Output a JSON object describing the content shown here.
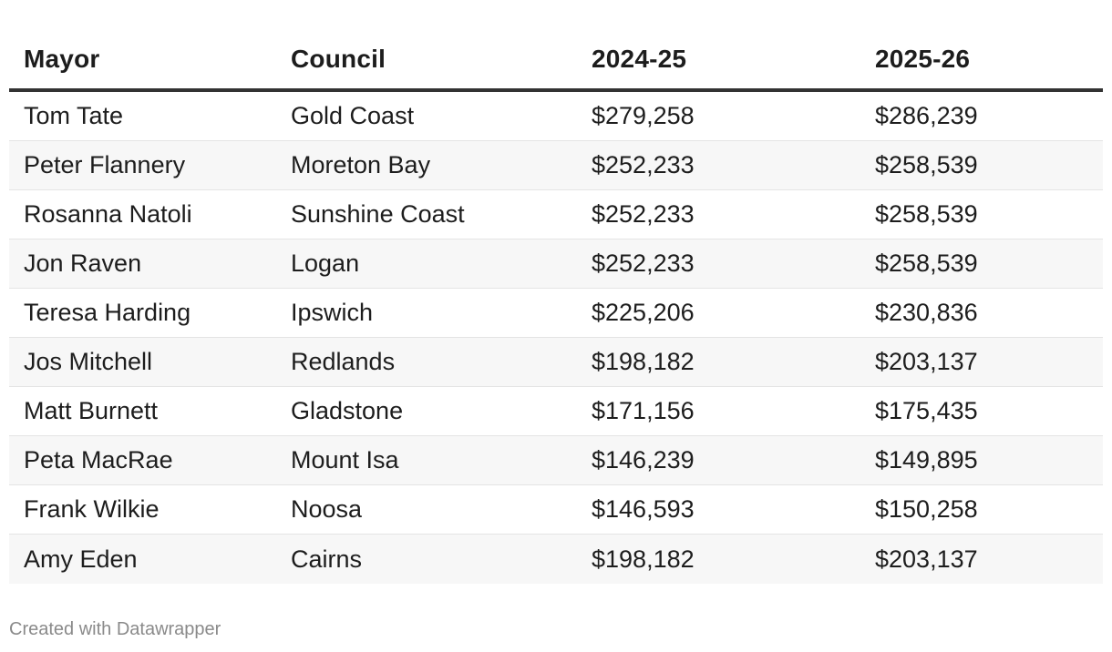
{
  "chart_data": {
    "type": "table",
    "columns": [
      "Mayor",
      "Council",
      "2024-25",
      "2025-26"
    ],
    "rows": [
      [
        "Tom Tate",
        "Gold Coast",
        "$279,258",
        "$286,239"
      ],
      [
        "Peter Flannery",
        "Moreton Bay",
        "$252,233",
        "$258,539"
      ],
      [
        "Rosanna Natoli",
        "Sunshine Coast",
        "$252,233",
        "$258,539"
      ],
      [
        "Jon Raven",
        "Logan",
        "$252,233",
        "$258,539"
      ],
      [
        "Teresa Harding",
        "Ipswich",
        "$225,206",
        "$230,836"
      ],
      [
        "Jos Mitchell",
        "Redlands",
        "$198,182",
        "$203,137"
      ],
      [
        "Matt Burnett",
        "Gladstone",
        "$171,156",
        "$175,435"
      ],
      [
        "Peta MacRae",
        "Mount Isa",
        "$146,239",
        "$149,895"
      ],
      [
        "Frank Wilkie",
        "Noosa",
        "$146,593",
        "$150,258"
      ],
      [
        "Amy Eden",
        "Cairns",
        "$198,182",
        "$203,137"
      ]
    ]
  },
  "footer": {
    "credit": "Created with Datawrapper"
  },
  "colors": {
    "header_rule": "#333333",
    "alt_row": "#f7f7f7",
    "row_rule": "#e4e4e4",
    "credit_text": "#8a8a8a"
  }
}
